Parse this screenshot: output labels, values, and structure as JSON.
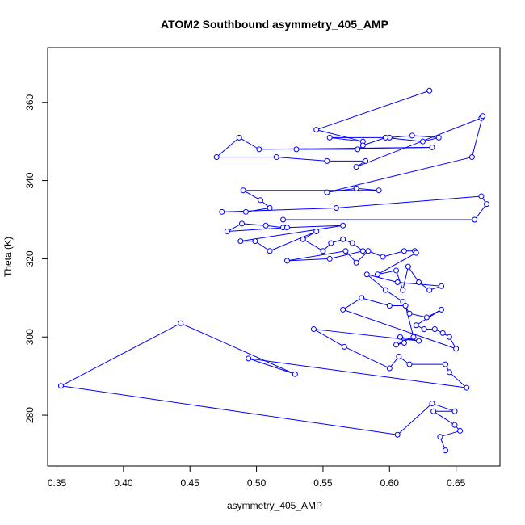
{
  "chart_data": {
    "type": "scatter",
    "title": "ATOM2 Southbound asymmetry_405_AMP",
    "xlabel": "asymmetry_405_AMP",
    "ylabel": "Theta (K)",
    "xlim": [
      0.343,
      0.683
    ],
    "ylim": [
      267,
      374
    ],
    "x_ticks": [
      0.35,
      0.4,
      0.45,
      0.5,
      0.55,
      0.6,
      0.65
    ],
    "x_tick_labels": [
      "0.35",
      "0.40",
      "0.45",
      "0.50",
      "0.55",
      "0.60",
      "0.65"
    ],
    "y_ticks": [
      280,
      300,
      320,
      340,
      360
    ],
    "y_tick_labels": [
      "280",
      "300",
      "320",
      "340",
      "360"
    ],
    "grid": false,
    "legend": "none",
    "connected": true,
    "marker": "open-circle",
    "color": "#0000ff",
    "points": [
      [
        0.63,
        363
      ],
      [
        0.545,
        353
      ],
      [
        0.58,
        350
      ],
      [
        0.555,
        351
      ],
      [
        0.6,
        351
      ],
      [
        0.617,
        351.5
      ],
      [
        0.637,
        351
      ],
      [
        0.625,
        350
      ],
      [
        0.597,
        351
      ],
      [
        0.58,
        349
      ],
      [
        0.576,
        348
      ],
      [
        0.53,
        348
      ],
      [
        0.632,
        348.5
      ],
      [
        0.502,
        348
      ],
      [
        0.487,
        351
      ],
      [
        0.47,
        346
      ],
      [
        0.515,
        346
      ],
      [
        0.553,
        345
      ],
      [
        0.582,
        345
      ],
      [
        0.575,
        343.5
      ],
      [
        0.669,
        356
      ],
      [
        0.67,
        356.5
      ],
      [
        0.662,
        346
      ],
      [
        0.553,
        337
      ],
      [
        0.575,
        338
      ],
      [
        0.592,
        337.5
      ],
      [
        0.49,
        337.5
      ],
      [
        0.503,
        335
      ],
      [
        0.51,
        333
      ],
      [
        0.492,
        332
      ],
      [
        0.474,
        332
      ],
      [
        0.56,
        333
      ],
      [
        0.669,
        336
      ],
      [
        0.673,
        334
      ],
      [
        0.664,
        330
      ],
      [
        0.52,
        330
      ],
      [
        0.52,
        328
      ],
      [
        0.507,
        328.5
      ],
      [
        0.489,
        329
      ],
      [
        0.478,
        327
      ],
      [
        0.523,
        328
      ],
      [
        0.565,
        328.5
      ],
      [
        0.488,
        324.5
      ],
      [
        0.499,
        324.5
      ],
      [
        0.51,
        322
      ],
      [
        0.545,
        327
      ],
      [
        0.535,
        325
      ],
      [
        0.55,
        322
      ],
      [
        0.556,
        324
      ],
      [
        0.565,
        325
      ],
      [
        0.572,
        324
      ],
      [
        0.58,
        322
      ],
      [
        0.555,
        320
      ],
      [
        0.523,
        319.5
      ],
      [
        0.567,
        322
      ],
      [
        0.575,
        319
      ],
      [
        0.584,
        322
      ],
      [
        0.595,
        320.5
      ],
      [
        0.611,
        322
      ],
      [
        0.619,
        322
      ],
      [
        0.62,
        321.5
      ],
      [
        0.591,
        316
      ],
      [
        0.605,
        317
      ],
      [
        0.61,
        312
      ],
      [
        0.614,
        318
      ],
      [
        0.622,
        314
      ],
      [
        0.63,
        312
      ],
      [
        0.639,
        313
      ],
      [
        0.606,
        314
      ],
      [
        0.583,
        316
      ],
      [
        0.597,
        312
      ],
      [
        0.61,
        309
      ],
      [
        0.615,
        306
      ],
      [
        0.628,
        305
      ],
      [
        0.639,
        307
      ],
      [
        0.62,
        303
      ],
      [
        0.626,
        302
      ],
      [
        0.634,
        302
      ],
      [
        0.64,
        301
      ],
      [
        0.645,
        300
      ],
      [
        0.65,
        297
      ],
      [
        0.565,
        307
      ],
      [
        0.579,
        310
      ],
      [
        0.6,
        308
      ],
      [
        0.612,
        308
      ],
      [
        0.618,
        300
      ],
      [
        0.605,
        298
      ],
      [
        0.611,
        298.5
      ],
      [
        0.608,
        300
      ],
      [
        0.622,
        299
      ],
      [
        0.543,
        302
      ],
      [
        0.566,
        297.5
      ],
      [
        0.6,
        292
      ],
      [
        0.607,
        295
      ],
      [
        0.615,
        293
      ],
      [
        0.642,
        293
      ],
      [
        0.645,
        291
      ],
      [
        0.658,
        287
      ],
      [
        0.494,
        294.5
      ],
      [
        0.529,
        290.5
      ],
      [
        0.443,
        303.5
      ],
      [
        0.353,
        287.5
      ],
      [
        0.606,
        275
      ],
      [
        0.632,
        283
      ],
      [
        0.649,
        281
      ],
      [
        0.633,
        281
      ],
      [
        0.649,
        277.5
      ],
      [
        0.653,
        276
      ],
      [
        0.638,
        274.5
      ],
      [
        0.642,
        271
      ]
    ]
  }
}
